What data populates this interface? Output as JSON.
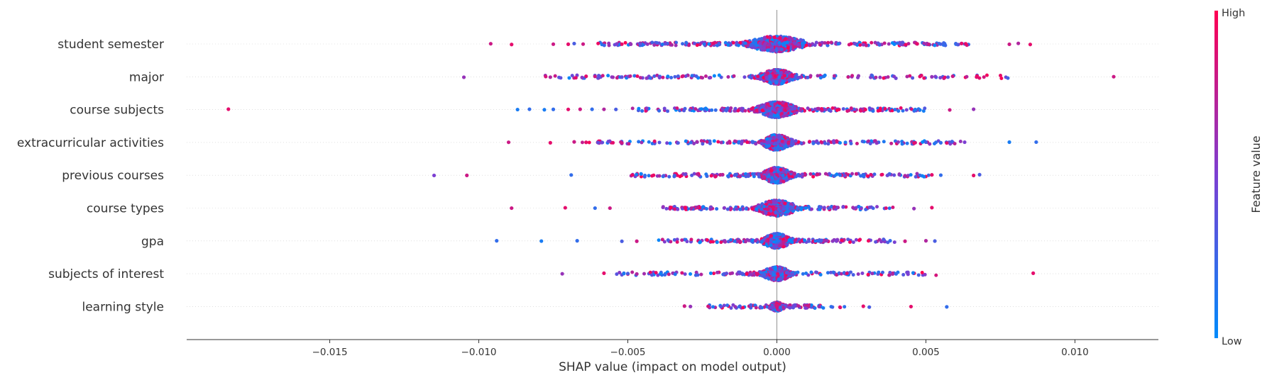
{
  "chart_data": {
    "type": "scatter",
    "subtype": "shap-beeswarm",
    "xlabel": "SHAP value (impact on model output)",
    "xlim": [
      -0.0198,
      0.0128
    ],
    "x_ticks": [
      -0.015,
      -0.01,
      -0.005,
      0.0,
      0.005,
      0.01
    ],
    "x_tick_labels": [
      "−0.015",
      "−0.010",
      "−0.005",
      "0.000",
      "0.005",
      "0.010"
    ],
    "zero_line": 0.0,
    "grid": false,
    "colorbar": {
      "title": "Feature value",
      "high_label": "High",
      "low_label": "Low",
      "high_color": "#ff0052",
      "low_color": "#008bfb",
      "placement": "right"
    },
    "features": [
      {
        "name": "student semester",
        "min": -0.0097,
        "max": 0.0086,
        "core": 0.0012,
        "density": 2.2,
        "outliers": [
          [
            -0.0096,
            0.8
          ],
          [
            -0.0089,
            0.9
          ],
          [
            -0.0075,
            0.8
          ],
          [
            -0.007,
            0.9
          ],
          [
            -0.0068,
            0.3
          ],
          [
            -0.0065,
            0.8
          ],
          [
            -0.0052,
            0.9
          ],
          [
            -0.0049,
            0.6
          ],
          [
            -0.0046,
            0.4
          ],
          [
            0.0047,
            0.9
          ],
          [
            0.0051,
            0.8
          ],
          [
            0.0062,
            0.9
          ],
          [
            0.0078,
            0.8
          ],
          [
            0.0081,
            0.7
          ],
          [
            0.0085,
            0.9
          ]
        ]
      },
      {
        "name": "major",
        "min": -0.0105,
        "max": 0.0113,
        "core": 0.0007,
        "density": 1.5,
        "outliers": [
          [
            -0.0105,
            0.6
          ],
          [
            -0.0076,
            0.7
          ],
          [
            -0.0064,
            0.9
          ],
          [
            -0.0061,
            0.8
          ],
          [
            -0.0055,
            0.6
          ],
          [
            -0.0052,
            0.4
          ],
          [
            0.0048,
            0.9
          ],
          [
            0.0052,
            0.6
          ],
          [
            0.0059,
            0.8
          ],
          [
            0.0067,
            0.9
          ],
          [
            0.0113,
            0.8
          ]
        ]
      },
      {
        "name": "course subjects",
        "min": -0.0184,
        "max": 0.0067,
        "core": 0.0008,
        "density": 1.7,
        "outliers": [
          [
            -0.0184,
            0.9
          ],
          [
            -0.0087,
            0.1
          ],
          [
            -0.0083,
            0.2
          ],
          [
            -0.0078,
            0.1
          ],
          [
            -0.0075,
            0.2
          ],
          [
            -0.007,
            0.9
          ],
          [
            -0.0066,
            0.8
          ],
          [
            -0.0062,
            0.2
          ],
          [
            -0.0058,
            0.7
          ],
          [
            -0.0054,
            0.3
          ],
          [
            0.0048,
            0.1
          ],
          [
            0.0058,
            0.8
          ],
          [
            0.0066,
            0.6
          ]
        ]
      },
      {
        "name": "extracurricular activities",
        "min": -0.0091,
        "max": 0.0087,
        "core": 0.0006,
        "density": 1.6,
        "outliers": [
          [
            -0.009,
            0.8
          ],
          [
            -0.0076,
            0.9
          ],
          [
            -0.0068,
            0.8
          ],
          [
            -0.0064,
            0.9
          ],
          [
            -0.006,
            0.4
          ],
          [
            -0.0055,
            0.9
          ],
          [
            -0.0052,
            0.8
          ],
          [
            0.0046,
            0.9
          ],
          [
            0.005,
            0.3
          ],
          [
            0.0055,
            0.2
          ],
          [
            0.0057,
            0.9
          ],
          [
            0.0063,
            0.5
          ],
          [
            0.0078,
            0.1
          ],
          [
            0.0087,
            0.2
          ]
        ]
      },
      {
        "name": "previous courses",
        "min": -0.0115,
        "max": 0.0068,
        "core": 0.0006,
        "density": 1.7,
        "outliers": [
          [
            -0.0115,
            0.5
          ],
          [
            -0.0104,
            0.8
          ],
          [
            -0.0069,
            0.2
          ],
          [
            0.0043,
            0.7
          ],
          [
            0.0048,
            0.2
          ],
          [
            0.0052,
            0.9
          ],
          [
            0.0055,
            0.2
          ],
          [
            0.0066,
            0.9
          ],
          [
            0.0068,
            0.3
          ]
        ]
      },
      {
        "name": "course types",
        "min": -0.0089,
        "max": 0.0052,
        "core": 0.0008,
        "density": 1.6,
        "outliers": [
          [
            -0.0089,
            0.8
          ],
          [
            -0.0071,
            0.9
          ],
          [
            -0.0061,
            0.2
          ],
          [
            -0.0056,
            0.8
          ],
          [
            0.0046,
            0.6
          ],
          [
            0.0052,
            0.9
          ]
        ]
      },
      {
        "name": "gpa",
        "min": -0.0094,
        "max": 0.0053,
        "core": 0.0006,
        "density": 1.5,
        "outliers": [
          [
            -0.0094,
            0.2
          ],
          [
            -0.0079,
            0.1
          ],
          [
            -0.0067,
            0.2
          ],
          [
            -0.0052,
            0.3
          ],
          [
            -0.0047,
            0.8
          ],
          [
            0.0038,
            0.2
          ],
          [
            0.0043,
            0.8
          ],
          [
            0.005,
            0.7
          ],
          [
            0.0053,
            0.3
          ]
        ]
      },
      {
        "name": "subjects of interest",
        "min": -0.0072,
        "max": 0.0086,
        "core": 0.0006,
        "density": 1.4,
        "outliers": [
          [
            -0.0072,
            0.6
          ],
          [
            -0.0058,
            0.9
          ],
          [
            -0.005,
            0.3
          ],
          [
            -0.0047,
            0.7
          ],
          [
            0.004,
            0.2
          ],
          [
            0.0044,
            0.5
          ],
          [
            0.0086,
            0.9
          ]
        ]
      },
      {
        "name": "learning style",
        "min": -0.0031,
        "max": 0.0057,
        "core": 0.0003,
        "density": 0.9,
        "outliers": [
          [
            -0.0031,
            0.8
          ],
          [
            -0.0029,
            0.6
          ],
          [
            0.0029,
            0.9
          ],
          [
            0.0031,
            0.3
          ],
          [
            0.0045,
            0.9
          ],
          [
            0.0057,
            0.2
          ]
        ]
      }
    ]
  }
}
